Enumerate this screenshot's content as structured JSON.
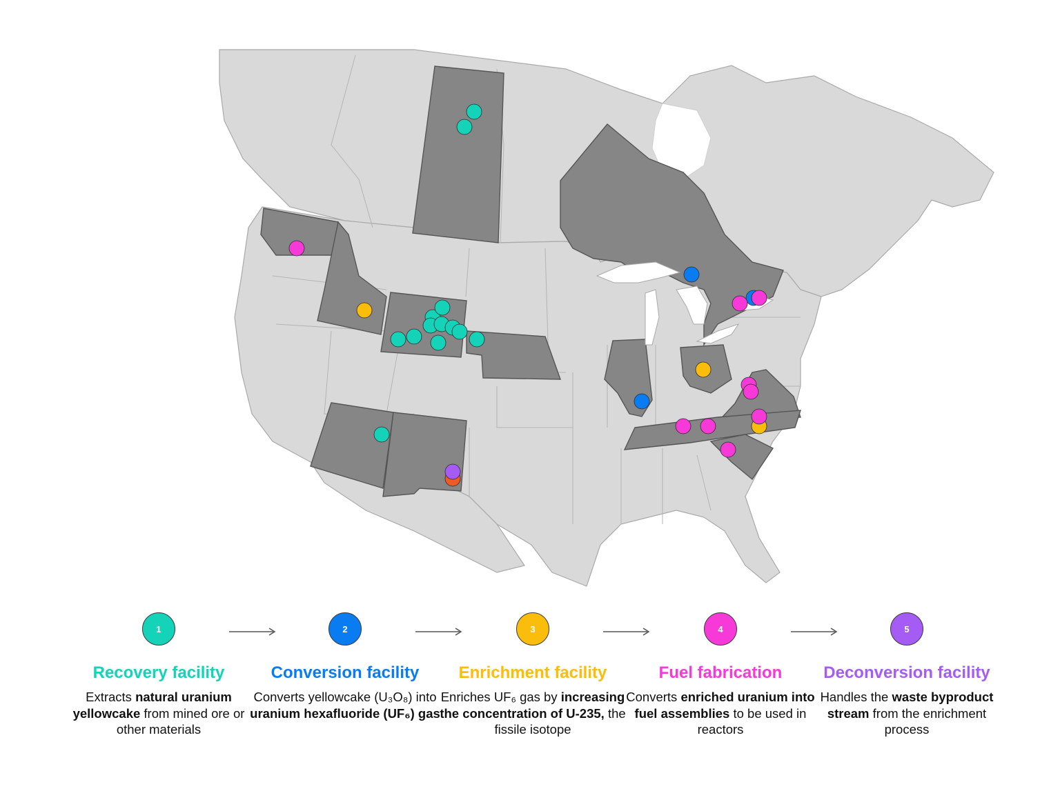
{
  "colors": {
    "recovery": "#14d3b8",
    "conversion": "#0a7cf2",
    "enrichment": "#fbbd0c",
    "fabrication": "#f73ad7",
    "deconversion": "#a45cf4",
    "other": "#f25a24",
    "land": "#d9d9d9",
    "highlighted_region": "#868686"
  },
  "legend": [
    {
      "number": "1",
      "title": "Recovery facility",
      "color": "#14d3b8",
      "description": [
        {
          "text": "Extracts ",
          "bold": false
        },
        {
          "text": "natural uranium yellowcake",
          "bold": true
        },
        {
          "text": " from mined ore or other materials",
          "bold": false
        }
      ]
    },
    {
      "number": "2",
      "title": "Conversion facility",
      "color": "#0a7cf2",
      "description": [
        {
          "text": "Converts yellowcake (U₃O₈) into ",
          "bold": false
        },
        {
          "text": "uranium hexafluoride (UF₆) gas",
          "bold": true
        }
      ]
    },
    {
      "number": "3",
      "title": "Enrichment facility",
      "color": "#fbbd0c",
      "description": [
        {
          "text": "Enriches UF₆ gas by ",
          "bold": false
        },
        {
          "text": "increasing the concentration of U-235,",
          "bold": true
        },
        {
          "text": " the fissile isotope",
          "bold": false
        }
      ]
    },
    {
      "number": "4",
      "title": "Fuel fabrication",
      "color": "#f73ad7",
      "description": [
        {
          "text": "Converts ",
          "bold": false
        },
        {
          "text": "enriched uranium into fuel assemblies",
          "bold": true
        },
        {
          "text": " to be used in reactors",
          "bold": false
        }
      ]
    },
    {
      "number": "5",
      "title": "Deconversion facility",
      "color": "#a45cf4",
      "description": [
        {
          "text": "Handles the ",
          "bold": false
        },
        {
          "text": "waste byproduct stream",
          "bold": true
        },
        {
          "text": " from the enrichment process",
          "bold": false
        }
      ]
    }
  ],
  "highlighted_regions": [
    "Saskatchewan",
    "Ontario",
    "Washington",
    "Idaho",
    "Wyoming",
    "Nebraska",
    "Arizona",
    "New Mexico",
    "Illinois",
    "Ohio",
    "Virginia",
    "Tennessee",
    "South Carolina"
  ],
  "facilities": [
    {
      "type": "recovery",
      "region": "Saskatchewan"
    },
    {
      "type": "recovery",
      "region": "Saskatchewan"
    },
    {
      "type": "recovery",
      "region": "Wyoming"
    },
    {
      "type": "recovery",
      "region": "Wyoming"
    },
    {
      "type": "recovery",
      "region": "Wyoming"
    },
    {
      "type": "recovery",
      "region": "Wyoming"
    },
    {
      "type": "recovery",
      "region": "Wyoming"
    },
    {
      "type": "recovery",
      "region": "Wyoming"
    },
    {
      "type": "recovery",
      "region": "Wyoming"
    },
    {
      "type": "recovery",
      "region": "Wyoming"
    },
    {
      "type": "recovery",
      "region": "Wyoming"
    },
    {
      "type": "recovery",
      "region": "Nebraska"
    },
    {
      "type": "recovery",
      "region": "Arizona"
    },
    {
      "type": "conversion",
      "region": "Ontario"
    },
    {
      "type": "conversion",
      "region": "Ontario"
    },
    {
      "type": "conversion",
      "region": "Illinois"
    },
    {
      "type": "enrichment",
      "region": "Idaho"
    },
    {
      "type": "enrichment",
      "region": "Ohio"
    },
    {
      "type": "enrichment",
      "region": "North Carolina"
    },
    {
      "type": "fabrication",
      "region": "Washington"
    },
    {
      "type": "fabrication",
      "region": "Ontario"
    },
    {
      "type": "fabrication",
      "region": "Ontario"
    },
    {
      "type": "fabrication",
      "region": "Virginia"
    },
    {
      "type": "fabrication",
      "region": "Virginia"
    },
    {
      "type": "fabrication",
      "region": "Tennessee"
    },
    {
      "type": "fabrication",
      "region": "Tennessee"
    },
    {
      "type": "fabrication",
      "region": "North Carolina"
    },
    {
      "type": "fabrication",
      "region": "South Carolina"
    },
    {
      "type": "deconversion",
      "region": "New Mexico"
    },
    {
      "type": "other",
      "region": "New Mexico"
    }
  ]
}
